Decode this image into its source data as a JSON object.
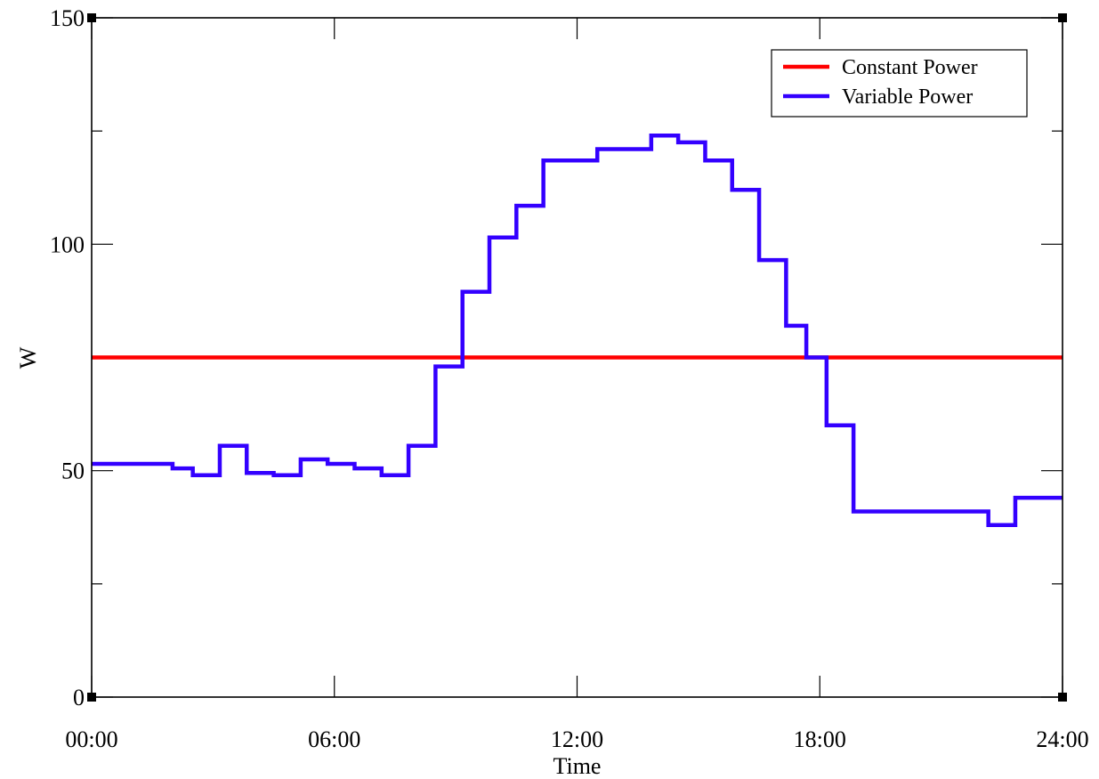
{
  "chart_data": {
    "type": "line",
    "title": "",
    "xlabel": "Time",
    "ylabel": "W",
    "xlim": [
      0,
      24
    ],
    "ylim": [
      0,
      150
    ],
    "x_ticks": [
      {
        "value": 0,
        "label": "00:00"
      },
      {
        "value": 6,
        "label": "06:00"
      },
      {
        "value": 12,
        "label": "12:00"
      },
      {
        "value": 18,
        "label": "18:00"
      },
      {
        "value": 24,
        "label": "24:00"
      }
    ],
    "y_ticks": [
      {
        "value": 0,
        "label": "0"
      },
      {
        "value": 50,
        "label": "50"
      },
      {
        "value": 100,
        "label": "100"
      },
      {
        "value": 150,
        "label": "150"
      }
    ],
    "y_minor_ticks": [
      25,
      75,
      125
    ],
    "grid": false,
    "legend_position": "top-right",
    "series": [
      {
        "name": "Constant Power",
        "color": "#ff0000",
        "step": "post",
        "x": [
          0,
          24
        ],
        "y": [
          75,
          75
        ]
      },
      {
        "name": "Variable Power",
        "color": "#3300ff",
        "step": "post",
        "x": [
          0,
          0.667,
          1.333,
          2.0,
          2.5,
          3.167,
          3.833,
          4.5,
          5.167,
          5.833,
          6.5,
          7.167,
          7.833,
          8.5,
          9.167,
          9.833,
          10.5,
          11.167,
          11.833,
          12.5,
          13.167,
          13.833,
          14.5,
          15.167,
          15.833,
          16.5,
          17.167,
          17.667,
          18.167,
          18.833,
          19.5,
          20.167,
          20.833,
          21.5,
          22.167,
          22.833,
          23.5,
          24
        ],
        "y": [
          51.5,
          51.5,
          51.5,
          50.5,
          49,
          55.5,
          49.5,
          49,
          52.5,
          51.5,
          50.5,
          49,
          55.5,
          73,
          89.5,
          101.5,
          108.5,
          118.5,
          118.5,
          121,
          121,
          124,
          122.5,
          118.5,
          112,
          96.5,
          82,
          75,
          60,
          41,
          41,
          41,
          41,
          41,
          38,
          44,
          44,
          44
        ]
      }
    ]
  }
}
